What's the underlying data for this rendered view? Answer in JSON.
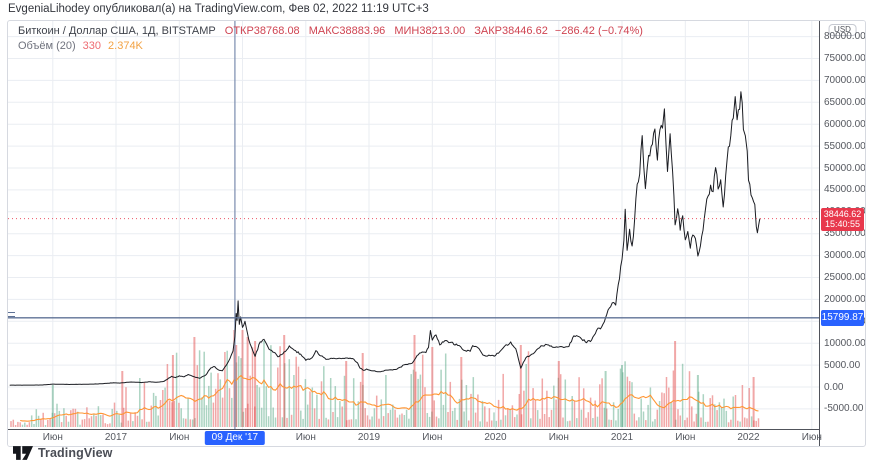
{
  "header": {
    "attribution": "EvgeniaLihodey опубликовал(а) на TradingView.com, Фев 02, 2022 11:19 UTC+3"
  },
  "legend": {
    "symbol_title": "Биткоин / Доллар США, 1Д, BITSTAMP",
    "ohlc": [
      {
        "label": "ОТКР",
        "value": "38768.08"
      },
      {
        "label": "МАКС",
        "value": "38883.96"
      },
      {
        "label": "МИН",
        "value": "38213.00"
      },
      {
        "label": "ЗАКР",
        "value": "38446.62"
      }
    ],
    "change": "−286.42 (−0.74%)",
    "volume_label": "Объём (20)",
    "volume_value": "330",
    "volume_ma_value": "2.374K"
  },
  "price_axis": {
    "currency_badge": "USD",
    "labels": [
      {
        "text": "80000.00",
        "value": 80000
      },
      {
        "text": "75000.00",
        "value": 75000
      },
      {
        "text": "70000.00",
        "value": 70000
      },
      {
        "text": "65000.00",
        "value": 65000
      },
      {
        "text": "60000.00",
        "value": 60000
      },
      {
        "text": "55000.00",
        "value": 55000
      },
      {
        "text": "50000.00",
        "value": 50000
      },
      {
        "text": "45000.00",
        "value": 45000
      },
      {
        "text": "40000.00",
        "value": 40000
      },
      {
        "text": "35000.00",
        "value": 35000
      },
      {
        "text": "30000.00",
        "value": 30000
      },
      {
        "text": "25000.00",
        "value": 25000
      },
      {
        "text": "20000.00",
        "value": 20000
      },
      {
        "text": "15000.00",
        "value": 15000
      },
      {
        "text": "10000.00",
        "value": 10000
      },
      {
        "text": "5000.00",
        "value": 5000
      },
      {
        "text": "0.00",
        "value": 0
      },
      {
        "text": "-5000.00",
        "value": -5000
      }
    ],
    "last_price_badge": {
      "price": "38446.62",
      "countdown": "15:40:55"
    },
    "level_badge": "15799.87"
  },
  "time_axis": {
    "labels": [
      {
        "text": "Июн",
        "t": 2016.5
      },
      {
        "text": "2017",
        "t": 2017
      },
      {
        "text": "Июн",
        "t": 2017.5
      },
      {
        "text": "Июн",
        "t": 2018.5
      },
      {
        "text": "2019",
        "t": 2019
      },
      {
        "text": "Июн",
        "t": 2019.5
      },
      {
        "text": "2020",
        "t": 2020
      },
      {
        "text": "Июн",
        "t": 2020.5
      },
      {
        "text": "2021",
        "t": 2021
      },
      {
        "text": "Июн",
        "t": 2021.5
      },
      {
        "text": "2022",
        "t": 2022
      },
      {
        "text": "Июн",
        "t": 2022.5
      }
    ],
    "selected_date_badge": {
      "text": "09 Дек '17",
      "t": 2017.94
    }
  },
  "footer": {
    "logo_text": "TradingView"
  },
  "colors": {
    "accent_blue": "#2962ff",
    "marker_line": "#7a8cae",
    "level_line": "#5f7296",
    "down_red": "#e8384c",
    "price_line": "#1a1c22",
    "grid": "#eaedf2",
    "volume_up": "rgba(72,160,120,0.45)",
    "volume_down": "rgba(226,72,72,0.48)",
    "volume_ma": "#ff9532"
  },
  "chart_data": {
    "type": "line",
    "title": "Биткоин / Доллар США, 1Д, BITSTAMP",
    "xlabel": "Дата",
    "ylabel": "USD",
    "x_range_years": [
      2016.16,
      2022.42
    ],
    "y_axis": {
      "min": -5000,
      "max": 80000,
      "step": 5000
    },
    "grid": true,
    "last_price": 38446.62,
    "horizontal_level": 15799.87,
    "vertical_marker_t": 2017.94,
    "noise_seed": 11,
    "price_series": [
      [
        2016.16,
        420
      ],
      [
        2016.3,
        430
      ],
      [
        2016.42,
        455
      ],
      [
        2016.5,
        660
      ],
      [
        2016.55,
        640
      ],
      [
        2016.62,
        590
      ],
      [
        2016.75,
        612
      ],
      [
        2016.88,
        725
      ],
      [
        2016.98,
        955
      ],
      [
        2017.03,
        890
      ],
      [
        2017.12,
        1150
      ],
      [
        2017.2,
        1010
      ],
      [
        2017.27,
        1190
      ],
      [
        2017.32,
        1080
      ],
      [
        2017.38,
        1300
      ],
      [
        2017.44,
        2450
      ],
      [
        2017.47,
        2150
      ],
      [
        2017.5,
        2550
      ],
      [
        2017.54,
        2350
      ],
      [
        2017.57,
        2850
      ],
      [
        2017.61,
        2400
      ],
      [
        2017.66,
        1980
      ],
      [
        2017.71,
        2750
      ],
      [
        2017.75,
        4350
      ],
      [
        2017.78,
        4650
      ],
      [
        2017.81,
        3900
      ],
      [
        2017.84,
        3700
      ],
      [
        2017.87,
        4900
      ],
      [
        2017.89,
        5900
      ],
      [
        2017.91,
        7200
      ],
      [
        2017.925,
        8200
      ],
      [
        2017.94,
        11500
      ],
      [
        2017.95,
        16800
      ],
      [
        2017.957,
        15200
      ],
      [
        2017.965,
        19650
      ],
      [
        2017.975,
        14300
      ],
      [
        2017.985,
        16000
      ],
      [
        2018.0,
        13600
      ],
      [
        2018.02,
        15000
      ],
      [
        2018.05,
        10800
      ],
      [
        2018.08,
        8400
      ],
      [
        2018.1,
        7000
      ],
      [
        2018.14,
        10300
      ],
      [
        2018.17,
        10900
      ],
      [
        2018.21,
        8600
      ],
      [
        2018.25,
        7900
      ],
      [
        2018.28,
        6900
      ],
      [
        2018.31,
        7400
      ],
      [
        2018.34,
        8100
      ],
      [
        2018.37,
        9400
      ],
      [
        2018.41,
        8400
      ],
      [
        2018.46,
        7500
      ],
      [
        2018.5,
        6100
      ],
      [
        2018.55,
        6700
      ],
      [
        2018.58,
        8300
      ],
      [
        2018.62,
        7100
      ],
      [
        2018.66,
        6300
      ],
      [
        2018.71,
        6500
      ],
      [
        2018.78,
        6450
      ],
      [
        2018.84,
        6500
      ],
      [
        2018.88,
        6350
      ],
      [
        2018.91,
        5500
      ],
      [
        2018.93,
        4300
      ],
      [
        2018.96,
        3800
      ],
      [
        2018.98,
        4100
      ],
      [
        2019.02,
        3700
      ],
      [
        2019.08,
        3500
      ],
      [
        2019.15,
        3850
      ],
      [
        2019.22,
        4050
      ],
      [
        2019.28,
        5100
      ],
      [
        2019.34,
        5400
      ],
      [
        2019.38,
        7200
      ],
      [
        2019.42,
        8000
      ],
      [
        2019.45,
        7850
      ],
      [
        2019.47,
        9050
      ],
      [
        2019.485,
        12900
      ],
      [
        2019.5,
        10700
      ],
      [
        2019.53,
        11900
      ],
      [
        2019.56,
        9600
      ],
      [
        2019.6,
        10600
      ],
      [
        2019.65,
        10200
      ],
      [
        2019.7,
        9500
      ],
      [
        2019.76,
        8300
      ],
      [
        2019.8,
        8150
      ],
      [
        2019.82,
        9450
      ],
      [
        2019.86,
        9000
      ],
      [
        2019.9,
        7300
      ],
      [
        2019.96,
        7150
      ],
      [
        2020.0,
        7200
      ],
      [
        2020.06,
        8900
      ],
      [
        2020.12,
        10300
      ],
      [
        2020.16,
        8800
      ],
      [
        2020.2,
        4300
      ],
      [
        2020.24,
        6700
      ],
      [
        2020.3,
        7600
      ],
      [
        2020.36,
        9400
      ],
      [
        2020.42,
        9600
      ],
      [
        2020.47,
        9050
      ],
      [
        2020.53,
        9150
      ],
      [
        2020.58,
        9250
      ],
      [
        2020.62,
        11700
      ],
      [
        2020.66,
        11500
      ],
      [
        2020.71,
        10300
      ],
      [
        2020.76,
        10700
      ],
      [
        2020.8,
        13000
      ],
      [
        2020.84,
        13800
      ],
      [
        2020.88,
        16600
      ],
      [
        2020.91,
        18300
      ],
      [
        2020.935,
        19300
      ],
      [
        2020.95,
        18700
      ],
      [
        2020.97,
        23300
      ],
      [
        2021.0,
        29100
      ],
      [
        2021.015,
        33500
      ],
      [
        2021.025,
        40600
      ],
      [
        2021.04,
        31200
      ],
      [
        2021.06,
        36000
      ],
      [
        2021.08,
        32200
      ],
      [
        2021.1,
        38200
      ],
      [
        2021.12,
        46300
      ],
      [
        2021.14,
        48600
      ],
      [
        2021.16,
        57400
      ],
      [
        2021.185,
        45300
      ],
      [
        2021.2,
        50200
      ],
      [
        2021.23,
        54900
      ],
      [
        2021.26,
        58900
      ],
      [
        2021.28,
        51800
      ],
      [
        2021.3,
        58700
      ],
      [
        2021.32,
        59100
      ],
      [
        2021.335,
        63500
      ],
      [
        2021.36,
        49200
      ],
      [
        2021.38,
        57800
      ],
      [
        2021.4,
        49200
      ],
      [
        2021.42,
        37000
      ],
      [
        2021.44,
        40700
      ],
      [
        2021.46,
        35800
      ],
      [
        2021.48,
        39100
      ],
      [
        2021.5,
        33600
      ],
      [
        2021.52,
        35500
      ],
      [
        2021.54,
        31700
      ],
      [
        2021.56,
        34700
      ],
      [
        2021.58,
        33900
      ],
      [
        2021.6,
        29900
      ],
      [
        2021.63,
        34400
      ],
      [
        2021.65,
        38300
      ],
      [
        2021.67,
        42900
      ],
      [
        2021.7,
        46100
      ],
      [
        2021.72,
        44600
      ],
      [
        2021.74,
        50100
      ],
      [
        2021.76,
        45200
      ],
      [
        2021.78,
        47300
      ],
      [
        2021.8,
        41100
      ],
      [
        2021.82,
        48300
      ],
      [
        2021.84,
        54800
      ],
      [
        2021.86,
        57400
      ],
      [
        2021.88,
        61400
      ],
      [
        2021.895,
        66300
      ],
      [
        2021.91,
        61000
      ],
      [
        2021.93,
        63400
      ],
      [
        2021.94,
        67400
      ],
      [
        2021.95,
        64900
      ],
      [
        2021.96,
        58800
      ],
      [
        2021.975,
        57400
      ],
      [
        2021.99,
        53900
      ],
      [
        2022.0,
        47200
      ],
      [
        2022.01,
        46300
      ],
      [
        2022.03,
        43200
      ],
      [
        2022.05,
        41700
      ],
      [
        2022.062,
        36600
      ],
      [
        2022.07,
        35200
      ],
      [
        2022.08,
        36900
      ],
      [
        2022.085,
        37800
      ],
      [
        2022.09,
        38446.62
      ]
    ],
    "volume_profile": [
      [
        2016.12,
        9
      ],
      [
        2016.45,
        10
      ],
      [
        2016.5,
        16
      ],
      [
        2016.7,
        10
      ],
      [
        2016.95,
        14
      ],
      [
        2017.05,
        22
      ],
      [
        2017.15,
        30
      ],
      [
        2017.25,
        22
      ],
      [
        2017.4,
        34
      ],
      [
        2017.5,
        42
      ],
      [
        2017.6,
        36
      ],
      [
        2017.75,
        48
      ],
      [
        2017.85,
        44
      ],
      [
        2017.95,
        60
      ],
      [
        2018.05,
        62
      ],
      [
        2018.15,
        58
      ],
      [
        2018.25,
        48
      ],
      [
        2018.4,
        42
      ],
      [
        2018.55,
        38
      ],
      [
        2018.7,
        32
      ],
      [
        2018.85,
        30
      ],
      [
        2018.95,
        44
      ],
      [
        2019.05,
        30
      ],
      [
        2019.2,
        30
      ],
      [
        2019.35,
        40
      ],
      [
        2019.5,
        46
      ],
      [
        2019.65,
        38
      ],
      [
        2019.8,
        30
      ],
      [
        2019.95,
        26
      ],
      [
        2020.1,
        32
      ],
      [
        2020.2,
        48
      ],
      [
        2020.35,
        34
      ],
      [
        2020.5,
        28
      ],
      [
        2020.65,
        26
      ],
      [
        2020.8,
        26
      ],
      [
        2020.95,
        32
      ],
      [
        2021.05,
        36
      ],
      [
        2021.2,
        28
      ],
      [
        2021.35,
        26
      ],
      [
        2021.45,
        40
      ],
      [
        2021.55,
        28
      ],
      [
        2021.7,
        22
      ],
      [
        2021.85,
        20
      ],
      [
        2021.95,
        22
      ],
      [
        2022.05,
        30
      ],
      [
        2022.09,
        24
      ]
    ],
    "volume_spikes": [
      [
        2016.5,
        42,
        "g"
      ],
      [
        2017.05,
        56,
        "r"
      ],
      [
        2017.45,
        72,
        "r"
      ],
      [
        2017.62,
        90,
        "r"
      ],
      [
        2017.95,
        82,
        "r"
      ],
      [
        2018.0,
        97,
        "r"
      ],
      [
        2018.04,
        90,
        "r"
      ],
      [
        2018.1,
        86,
        "r"
      ],
      [
        2018.33,
        92,
        "r"
      ],
      [
        2018.82,
        66,
        "r"
      ],
      [
        2018.95,
        74,
        "r"
      ],
      [
        2019.36,
        92,
        "r"
      ],
      [
        2019.5,
        80,
        "r"
      ],
      [
        2019.73,
        70,
        "r"
      ],
      [
        2020.2,
        82,
        "r"
      ],
      [
        2020.5,
        66,
        "r"
      ],
      [
        2020.87,
        56,
        "g"
      ],
      [
        2021.0,
        62,
        "g"
      ],
      [
        2021.42,
        86,
        "r"
      ],
      [
        2021.6,
        52,
        "g"
      ],
      [
        2022.04,
        50,
        "r"
      ]
    ]
  }
}
